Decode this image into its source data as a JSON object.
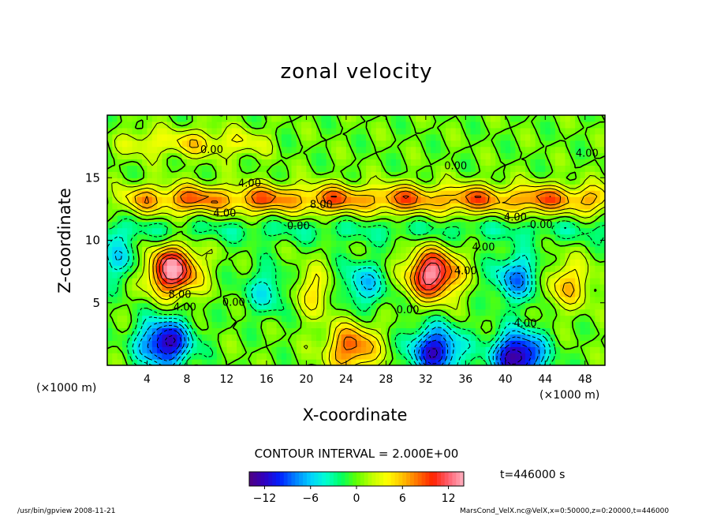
{
  "chart_data": {
    "type": "heatmap",
    "title": "zonal velocity",
    "xlabel": "X-coordinate",
    "ylabel": "Z-coordinate",
    "x_unit_left": "(×1000 m)",
    "x_unit_right": "(×1000 m)",
    "xlim": [
      0,
      50
    ],
    "ylim": [
      0,
      20
    ],
    "x_ticks": [
      4,
      8,
      12,
      16,
      20,
      24,
      28,
      32,
      36,
      40,
      44,
      48
    ],
    "y_ticks": [
      5,
      10,
      15
    ],
    "contour_interval_text": "CONTOUR INTERVAL = 2.000E+00",
    "contour_labels": [
      {
        "text": "0.00",
        "x": 10.5,
        "z": 17.2
      },
      {
        "text": "4.00",
        "x": 14.3,
        "z": 14.5
      },
      {
        "text": "8.00",
        "x": 21.5,
        "z": 12.8
      },
      {
        "text": "4.00",
        "x": 11.8,
        "z": 12.1
      },
      {
        "text": "0.00",
        "x": 19.2,
        "z": 11.1
      },
      {
        "text": "0.00",
        "x": 35.0,
        "z": 15.9
      },
      {
        "text": "4.00",
        "x": 48.2,
        "z": 16.9
      },
      {
        "text": "4.00",
        "x": 41.0,
        "z": 11.8
      },
      {
        "text": "0.00",
        "x": 43.6,
        "z": 11.2
      },
      {
        "text": "4.00",
        "x": 37.8,
        "z": 9.4
      },
      {
        "text": "8.00",
        "x": 7.3,
        "z": 5.6
      },
      {
        "text": "4.00",
        "x": 7.8,
        "z": 4.6
      },
      {
        "text": "0.00",
        "x": 12.7,
        "z": 5.0
      },
      {
        "text": "0.00",
        "x": 30.2,
        "z": 4.4
      },
      {
        "text": "4.00",
        "x": 42.0,
        "z": 3.3
      },
      {
        "text": "4.00",
        "x": 36.0,
        "z": 7.5
      }
    ],
    "field_features": [
      {
        "kind": "jet",
        "z": 13.3,
        "x_start": 0,
        "x_end": 50,
        "peak": 9,
        "note": "strong eastward band across upper layer"
      },
      {
        "kind": "jet",
        "z": 17.8,
        "x_start": 0,
        "x_end": 15,
        "peak": 5
      },
      {
        "kind": "max",
        "x": 6.5,
        "z": 7.6,
        "peak": 14
      },
      {
        "kind": "max",
        "x": 32.7,
        "z": 7.3,
        "peak": 14
      },
      {
        "kind": "min",
        "x": 5.8,
        "z": 1.8,
        "peak": -13
      },
      {
        "kind": "min",
        "x": 33.0,
        "z": 1.2,
        "peak": -12
      },
      {
        "kind": "min",
        "x": 41.3,
        "z": 0.8,
        "peak": -14
      },
      {
        "kind": "max",
        "x": 24.6,
        "z": 1.4,
        "peak": 9
      },
      {
        "kind": "min",
        "x": 16.4,
        "z": 6.0,
        "peak": -5
      },
      {
        "kind": "min",
        "x": 25.6,
        "z": 6.5,
        "peak": -6
      },
      {
        "kind": "min",
        "x": 41.3,
        "z": 7.0,
        "peak": -8
      },
      {
        "kind": "max",
        "x": 46.0,
        "z": 6.5,
        "peak": 6
      },
      {
        "kind": "max",
        "x": 20.5,
        "z": 6.0,
        "peak": 5
      },
      {
        "kind": "min",
        "x": 1.0,
        "z": 8.5,
        "peak": -5
      }
    ],
    "colorbar": {
      "min": -14,
      "max": 14,
      "ticks": [
        -12,
        -6,
        0,
        6,
        12
      ],
      "tick_labels": [
        "−12",
        "−6",
        "0",
        "6",
        "12"
      ],
      "colors": [
        "#500080",
        "#3000c0",
        "#0020ff",
        "#0080ff",
        "#00d0ff",
        "#00ffd0",
        "#00ff60",
        "#60ff00",
        "#c0ff00",
        "#ffff00",
        "#ffc000",
        "#ff7000",
        "#ff2000",
        "#ff6070",
        "#ffb0c0"
      ]
    },
    "time_label": "t=446000 s"
  },
  "footer": {
    "left": "/usr/bin/gpview   2008-11-21",
    "right": "MarsCond_VelX.nc@VelX,x=0:50000,z=0:20000,t=446000"
  }
}
